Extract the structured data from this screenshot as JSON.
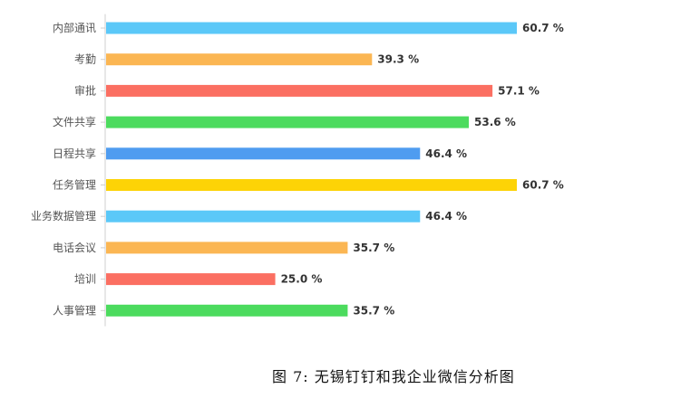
{
  "caption": "图 7:  无锡钉钉和我企业微信分析图",
  "chart_data": {
    "type": "bar",
    "orientation": "horizontal",
    "title": "",
    "xlabel": "",
    "ylabel": "",
    "xlim": [
      0,
      100
    ],
    "grid": false,
    "value_suffix": " %",
    "categories": [
      "内部通讯",
      "考勤",
      "审批",
      "文件共享",
      "日程共享",
      "任务管理",
      "业务数据管理",
      "电话会议",
      "培训",
      "人事管理"
    ],
    "values": [
      60.7,
      39.3,
      57.1,
      53.6,
      46.4,
      60.7,
      46.4,
      35.7,
      25.0,
      35.7
    ],
    "colors": [
      "#5bc8f8",
      "#fbb653",
      "#fb6f62",
      "#4cdb5e",
      "#4f9cf0",
      "#fdd306",
      "#5bc8f8",
      "#fbb653",
      "#fb6f62",
      "#4cdb5e"
    ]
  }
}
